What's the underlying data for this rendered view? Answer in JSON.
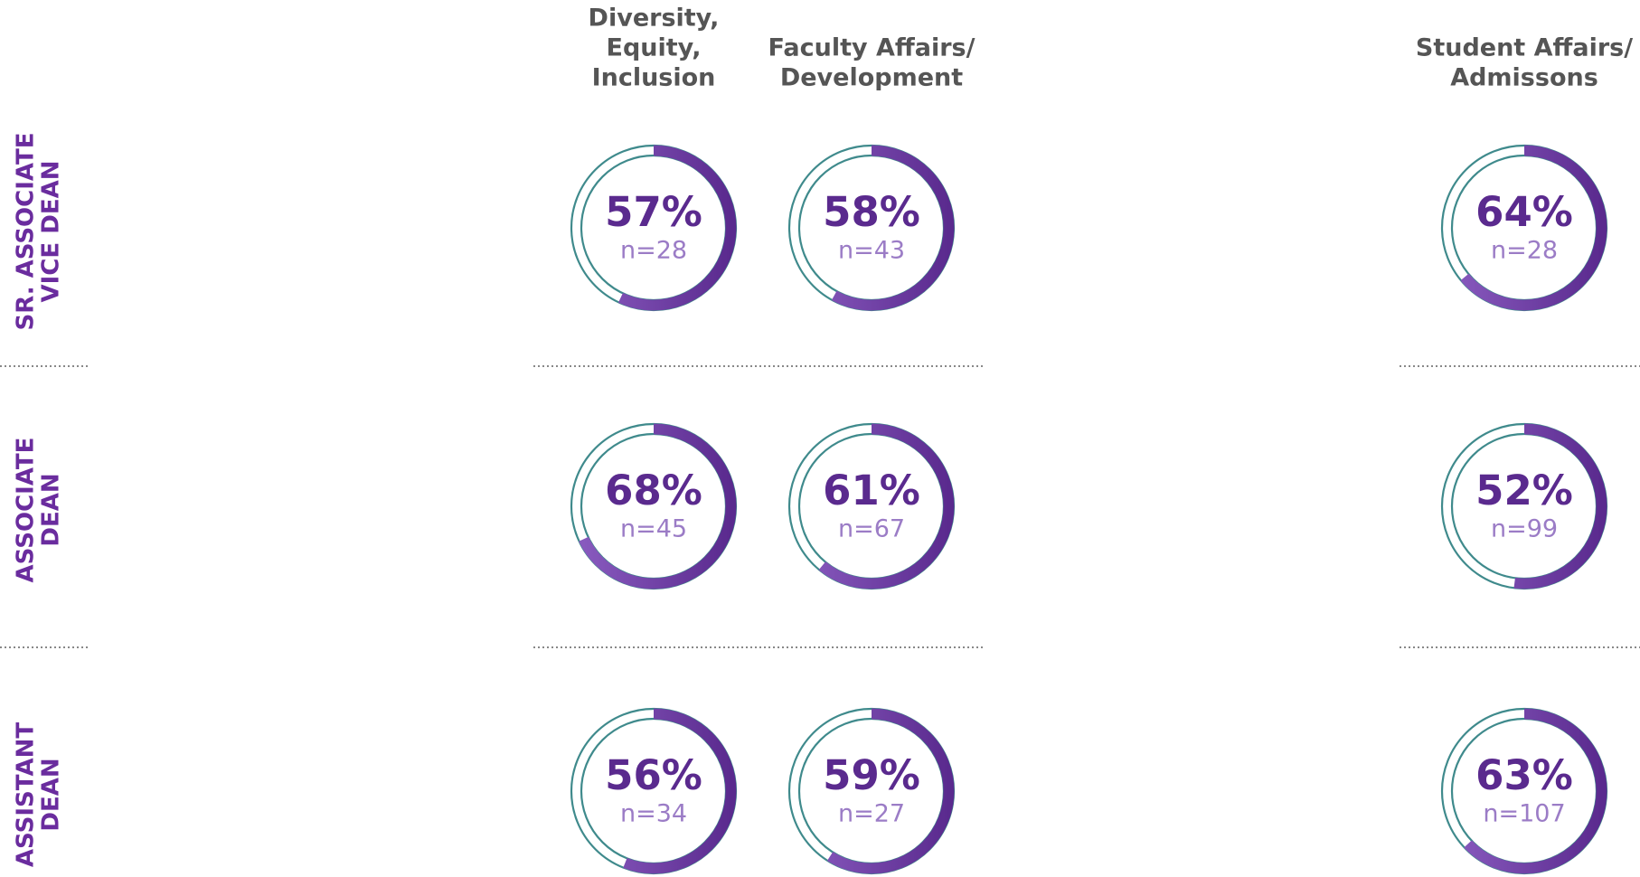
{
  "columns": [
    [
      "Diversity,",
      "Equity,",
      "Inclusion"
    ],
    [
      "Faculty Affairs/",
      "Development"
    ],
    [
      "Student Affairs/",
      "Admissons"
    ]
  ],
  "rows": [
    {
      "label": [
        "SR. ASSOCIATE",
        "VICE DEAN"
      ],
      "cells": [
        {
          "value": 57,
          "label": "57%",
          "n": "n=28"
        },
        {
          "value": 58,
          "label": "58%",
          "n": "n=43"
        },
        {
          "value": 64,
          "label": "64%",
          "n": "n=28"
        }
      ]
    },
    {
      "label": [
        "ASSOCIATE",
        "DEAN"
      ],
      "cells": [
        {
          "value": 68,
          "label": "68%",
          "n": "n=45"
        },
        {
          "value": 61,
          "label": "61%",
          "n": "n=67"
        },
        {
          "value": 52,
          "label": "52%",
          "n": "n=99"
        }
      ]
    },
    {
      "label": [
        "ASSISTANT",
        "DEAN"
      ],
      "cells": [
        {
          "value": 56,
          "label": "56%",
          "n": "n=34"
        },
        {
          "value": 59,
          "label": "59%",
          "n": "n=27"
        },
        {
          "value": 63,
          "label": "63%",
          "n": "n=107"
        }
      ]
    }
  ]
}
